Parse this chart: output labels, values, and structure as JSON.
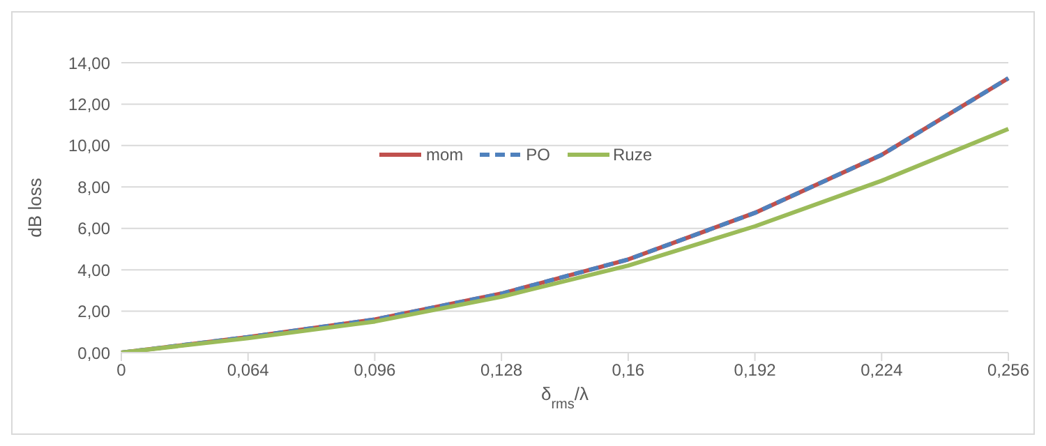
{
  "chart_data": {
    "type": "line",
    "xlabel": "δ$_{rms}$/λ",
    "ylabel": "dB loss",
    "categories": [
      "0",
      "0,064",
      "0,096",
      "0,128",
      "0,16",
      "0,192",
      "0,224",
      "0,256"
    ],
    "series": [
      {
        "name": "mom",
        "color": "#c0504d",
        "line_style": "solid",
        "values": [
          0,
          0.75,
          1.6,
          2.85,
          4.5,
          6.75,
          9.55,
          13.25
        ]
      },
      {
        "name": "PO",
        "color": "#4f81bd",
        "line_style": "dashed",
        "values": [
          0,
          0.75,
          1.6,
          2.85,
          4.5,
          6.75,
          9.55,
          13.25
        ]
      },
      {
        "name": "Ruze",
        "color": "#9bbb59",
        "line_style": "solid",
        "values": [
          0,
          0.7,
          1.5,
          2.7,
          4.2,
          6.1,
          8.3,
          10.8
        ]
      }
    ],
    "ylim": [
      0,
      14
    ],
    "yticks": [
      {
        "value": 0,
        "label": "0,00"
      },
      {
        "value": 2,
        "label": "2,00"
      },
      {
        "value": 4,
        "label": "4,00"
      },
      {
        "value": 6,
        "label": "6,00"
      },
      {
        "value": 8,
        "label": "8,00"
      },
      {
        "value": 10,
        "label": "10,00"
      },
      {
        "value": 12,
        "label": "12,00"
      },
      {
        "value": 14,
        "label": "14,00"
      }
    ],
    "grid": "y",
    "legend": "top",
    "marker": "none"
  }
}
